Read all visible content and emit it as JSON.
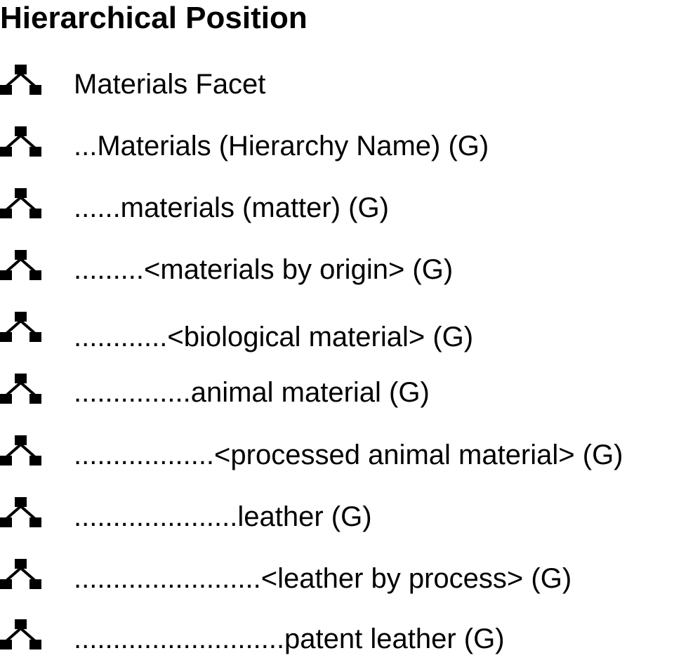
{
  "title": "Hierarchical Position",
  "icon": "hierarchy-icon",
  "items": [
    {
      "label": "Materials Facet"
    },
    {
      "label": "...Materials (Hierarchy Name) (G)"
    },
    {
      "label": "......materials (matter) (G)"
    },
    {
      "label": ".........<materials by origin> (G)"
    },
    {
      "label": "............<biological material> (G)"
    },
    {
      "label": "...............animal material (G)"
    },
    {
      "label": "..................<processed animal material> (G)"
    },
    {
      "label": ".....................leather (G)"
    },
    {
      "label": "........................<leather by process> (G)"
    },
    {
      "label": "...........................patent leather (G)"
    }
  ]
}
